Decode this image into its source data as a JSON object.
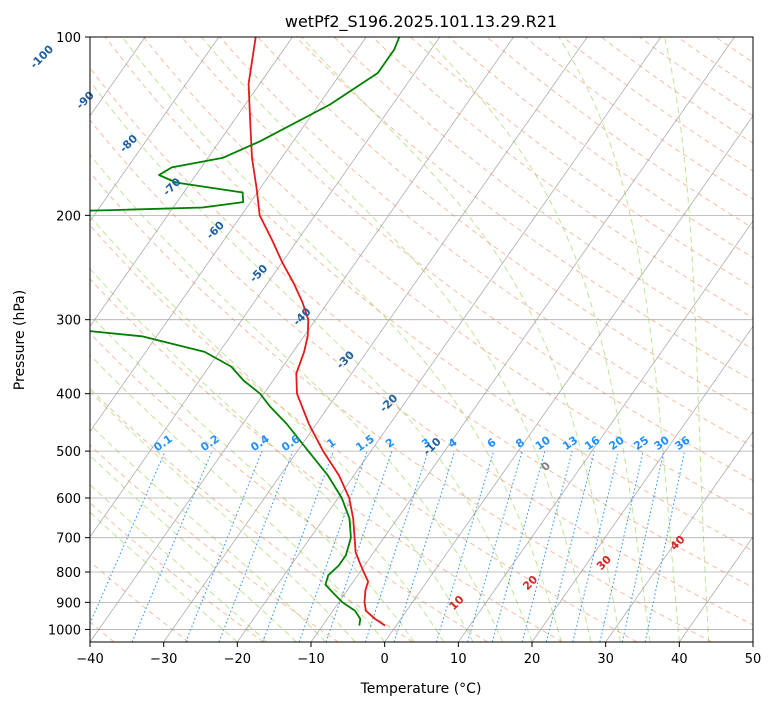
{
  "chart_data": {
    "type": "line",
    "diagram": "skew-T log-P",
    "title": "wetPf2_S196.2025.101.13.29.R21",
    "xlabel": "Temperature (°C)",
    "ylabel": "Pressure (hPa)",
    "xlim": [
      -40,
      50
    ],
    "ylim": [
      1050,
      100
    ],
    "y_scale": "log",
    "x_ticks": [
      -40,
      -30,
      -20,
      -10,
      0,
      10,
      20,
      30,
      40,
      50
    ],
    "x_tick_labels": [
      "−40",
      "−30",
      "−20",
      "−10",
      "0",
      "10",
      "20",
      "30",
      "40",
      "50"
    ],
    "y_ticks": [
      1000,
      900,
      800,
      700,
      600,
      500,
      400,
      300,
      200,
      100
    ],
    "y_tick_labels": [
      "1000",
      "900",
      "800",
      "700",
      "600",
      "500",
      "400",
      "300",
      "200",
      "100"
    ],
    "grid": true,
    "colors": {
      "temperature": "#e41a1c",
      "dewpoint": "#008000",
      "isotherms": "#999999",
      "dry_adiabats": "#f4a582",
      "moist_adiabats": "#a6d96a",
      "mixing_ratio": "#1e90ff",
      "isotherm_labels": "#1f5f9f",
      "positive_isotherm_labels": "#d62728",
      "zero_isotherm_label": "#808080"
    },
    "series": [
      {
        "id": "temperature",
        "points": [
          {
            "p": 985,
            "t": -1.5
          },
          {
            "p": 960,
            "t": -3.5
          },
          {
            "p": 930,
            "t": -5.5
          },
          {
            "p": 900,
            "t": -6.5
          },
          {
            "p": 860,
            "t": -7.5
          },
          {
            "p": 830,
            "t": -8.0
          },
          {
            "p": 800,
            "t": -9.5
          },
          {
            "p": 770,
            "t": -11.0
          },
          {
            "p": 740,
            "t": -12.5
          },
          {
            "p": 700,
            "t": -14.0
          },
          {
            "p": 650,
            "t": -16.0
          },
          {
            "p": 600,
            "t": -18.5
          },
          {
            "p": 550,
            "t": -22.0
          },
          {
            "p": 500,
            "t": -26.5
          },
          {
            "p": 450,
            "t": -31.0
          },
          {
            "p": 400,
            "t": -35.5
          },
          {
            "p": 370,
            "t": -37.5
          },
          {
            "p": 340,
            "t": -38.5
          },
          {
            "p": 320,
            "t": -39.5
          },
          {
            "p": 300,
            "t": -41.0
          },
          {
            "p": 280,
            "t": -43.5
          },
          {
            "p": 260,
            "t": -46.5
          },
          {
            "p": 240,
            "t": -50.0
          },
          {
            "p": 220,
            "t": -53.5
          },
          {
            "p": 200,
            "t": -57.5
          },
          {
            "p": 180,
            "t": -60.5
          },
          {
            "p": 160,
            "t": -64.0
          },
          {
            "p": 140,
            "t": -67.5
          },
          {
            "p": 120,
            "t": -71.5
          },
          {
            "p": 100,
            "t": -75.0
          }
        ]
      },
      {
        "id": "dewpoint",
        "points": [
          {
            "p": 985,
            "t": -5.0
          },
          {
            "p": 960,
            "t": -5.5
          },
          {
            "p": 930,
            "t": -7.0
          },
          {
            "p": 900,
            "t": -9.5
          },
          {
            "p": 870,
            "t": -11.5
          },
          {
            "p": 840,
            "t": -13.5
          },
          {
            "p": 810,
            "t": -14.0
          },
          {
            "p": 780,
            "t": -13.5
          },
          {
            "p": 750,
            "t": -13.5
          },
          {
            "p": 700,
            "t": -14.5
          },
          {
            "p": 650,
            "t": -16.5
          },
          {
            "p": 600,
            "t": -19.5
          },
          {
            "p": 550,
            "t": -23.5
          },
          {
            "p": 500,
            "t": -28.5
          },
          {
            "p": 450,
            "t": -34.0
          },
          {
            "p": 420,
            "t": -38.0
          },
          {
            "p": 400,
            "t": -40.5
          },
          {
            "p": 380,
            "t": -44.0
          },
          {
            "p": 360,
            "t": -47.0
          },
          {
            "p": 340,
            "t": -52.0
          },
          {
            "p": 320,
            "t": -62.0
          },
          {
            "p": 305,
            "t": -80.0
          },
          {
            "p": 300,
            "t": -95.0
          },
          {
            "p": 240,
            "t": -100.0
          },
          {
            "p": 220,
            "t": -99.0
          },
          {
            "p": 205,
            "t": -97.0
          },
          {
            "p": 198,
            "t": -94.0
          },
          {
            "p": 196,
            "t": -78.0
          },
          {
            "p": 194,
            "t": -66.0
          },
          {
            "p": 190,
            "t": -61.0
          },
          {
            "p": 183,
            "t": -62.0
          },
          {
            "p": 176,
            "t": -72.0
          },
          {
            "p": 171,
            "t": -75.0
          },
          {
            "p": 166,
            "t": -74.0
          },
          {
            "p": 160,
            "t": -68.0
          },
          {
            "p": 150,
            "t": -64.5
          },
          {
            "p": 130,
            "t": -58.5
          },
          {
            "p": 115,
            "t": -55.0
          },
          {
            "p": 105,
            "t": -55.0
          },
          {
            "p": 100,
            "t": -55.5
          }
        ]
      }
    ],
    "isotherm_labels": [
      {
        "text": "-100",
        "t": -100
      },
      {
        "text": "-90",
        "t": -90
      },
      {
        "text": "-80",
        "t": -80
      },
      {
        "text": "-70",
        "t": -70
      },
      {
        "text": "-60",
        "t": -60
      },
      {
        "text": "-50",
        "t": -50
      },
      {
        "text": "-40",
        "t": -40
      },
      {
        "text": "-30",
        "t": -30
      },
      {
        "text": "-20",
        "t": -20
      },
      {
        "text": "-10",
        "t": -10
      },
      {
        "text": "0",
        "t": 0
      },
      {
        "text": "10",
        "t": 10
      },
      {
        "text": "20",
        "t": 20
      },
      {
        "text": "30",
        "t": 30
      },
      {
        "text": "40",
        "t": 40
      }
    ],
    "mixing_ratio_labels": [
      "0.1",
      "0.2",
      "0.4",
      "0.6",
      "1",
      "1.5",
      "2",
      "3",
      "4",
      "6",
      "8",
      "10",
      "13",
      "16",
      "20",
      "25",
      "30",
      "36"
    ],
    "mixing_ratio_values": [
      0.1,
      0.2,
      0.4,
      0.6,
      1,
      1.5,
      2,
      3,
      4,
      6,
      8,
      10,
      13,
      16,
      20,
      25,
      30,
      36
    ],
    "mixing_ratio_label_pressure": 500
  }
}
